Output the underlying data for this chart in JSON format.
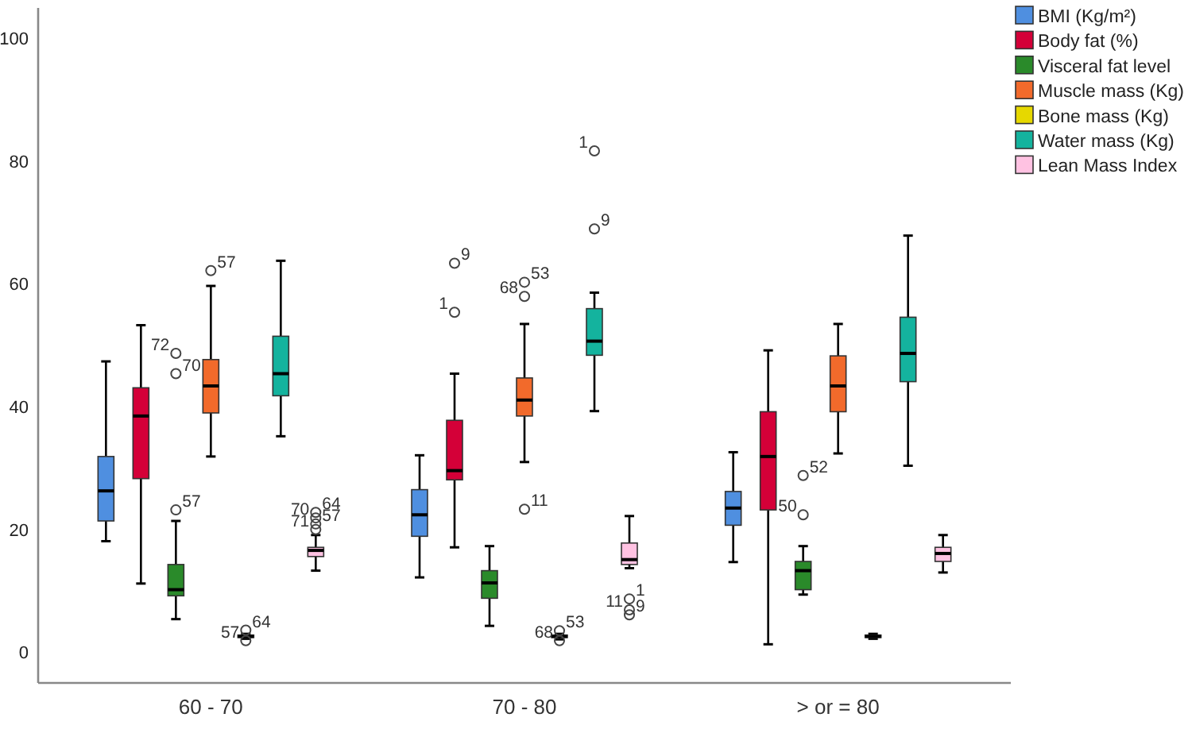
{
  "chart_data": {
    "type": "box",
    "categories": [
      "60 - 70",
      "70 - 80",
      "> or = 80"
    ],
    "ylim": [
      -5,
      105
    ],
    "yticks": [
      0,
      20,
      40,
      60,
      80,
      100
    ],
    "grid": false,
    "legend": "top right",
    "series": [
      {
        "name": "BMI (Kg/m²)",
        "color": "#4f8fe0",
        "boxes": [
          {
            "low": 18.1,
            "q1": 21.4,
            "median": 26.3,
            "q3": 31.9,
            "high": 47.4
          },
          {
            "low": 12.2,
            "q1": 18.9,
            "median": 22.4,
            "q3": 26.5,
            "high": 32.1
          },
          {
            "low": 14.7,
            "q1": 20.7,
            "median": 23.5,
            "q3": 26.2,
            "high": 32.6
          }
        ]
      },
      {
        "name": "Body fat (%)",
        "color": "#d40038",
        "boxes": [
          {
            "low": 11.2,
            "q1": 28.3,
            "median": 38.5,
            "q3": 43.1,
            "high": 53.3
          },
          {
            "low": 17.1,
            "q1": 28.1,
            "median": 29.6,
            "q3": 37.8,
            "high": 45.4,
            "outliers": [
              63.4,
              55.4
            ]
          },
          {
            "low": 1.3,
            "q1": 23.2,
            "median": 31.9,
            "q3": 39.2,
            "high": 49.2
          }
        ]
      },
      {
        "name": "Visceral fat level",
        "color": "#2a8a2a",
        "boxes": [
          {
            "low": 5.4,
            "q1": 9.2,
            "median": 10.2,
            "q3": 14.3,
            "high": 21.4,
            "outliers": [
              23.2,
              48.7,
              45.4
            ]
          },
          {
            "low": 4.3,
            "q1": 8.8,
            "median": 11.3,
            "q3": 13.3,
            "high": 17.3
          },
          {
            "low": 9.4,
            "q1": 10.2,
            "median": 13.3,
            "q3": 14.8,
            "high": 17.3,
            "outliers": [
              28.8,
              22.4
            ]
          }
        ]
      },
      {
        "name": "Muscle mass (Kg)",
        "color": "#f26a2b",
        "boxes": [
          {
            "low": 31.9,
            "q1": 39.0,
            "median": 43.4,
            "q3": 47.7,
            "high": 59.7,
            "outliers": [
              62.2
            ]
          },
          {
            "low": 31.0,
            "q1": 38.5,
            "median": 41.1,
            "q3": 44.7,
            "high": 53.5,
            "outliers": [
              60.3,
              58.0,
              23.3
            ]
          },
          {
            "low": 32.4,
            "q1": 39.2,
            "median": 43.4,
            "q3": 48.3,
            "high": 53.5
          }
        ]
      },
      {
        "name": "Bone mass (Kg)",
        "color": "#e6d800",
        "boxes": [
          {
            "low": 2.2,
            "q1": 2.4,
            "median": 2.6,
            "q3": 2.8,
            "high": 3.0,
            "outliers": [
              3.6,
              1.9
            ]
          },
          {
            "low": 2.1,
            "q1": 2.4,
            "median": 2.6,
            "q3": 2.8,
            "high": 3.0,
            "outliers": [
              3.5,
              1.9
            ]
          },
          {
            "low": 2.2,
            "q1": 2.4,
            "median": 2.6,
            "q3": 2.8,
            "high": 3.0
          }
        ]
      },
      {
        "name": "Water mass (Kg)",
        "color": "#14b39e",
        "boxes": [
          {
            "low": 35.2,
            "q1": 41.8,
            "median": 45.4,
            "q3": 51.5,
            "high": 63.8
          },
          {
            "low": 39.3,
            "q1": 48.4,
            "median": 50.7,
            "q3": 56.0,
            "high": 58.6,
            "outliers": [
              69.0,
              81.7
            ]
          },
          {
            "low": 30.4,
            "q1": 44.1,
            "median": 48.7,
            "q3": 54.6,
            "high": 67.9
          }
        ]
      },
      {
        "name": "Lean Mass Index",
        "color": "#ffc2e2",
        "boxes": [
          {
            "low": 13.3,
            "q1": 15.6,
            "median": 16.6,
            "q3": 17.1,
            "high": 19.1,
            "outliers": [
              22.8,
              21.9,
              20.9,
              20.0
            ]
          },
          {
            "low": 13.7,
            "q1": 14.3,
            "median": 15.1,
            "q3": 17.8,
            "high": 22.2,
            "outliers": [
              8.7,
              6.9,
              6.1
            ]
          },
          {
            "low": 13.0,
            "q1": 14.8,
            "median": 16.1,
            "q3": 17.1,
            "high": 19.1
          }
        ]
      }
    ],
    "annotations": [
      "57",
      "72",
      "70",
      "57",
      "64",
      "57",
      "64",
      "70",
      "57",
      "71",
      "9",
      "1",
      "53",
      "68",
      "11",
      "53",
      "68",
      "9",
      "1",
      "1",
      "11",
      "9",
      "52",
      "50"
    ]
  }
}
